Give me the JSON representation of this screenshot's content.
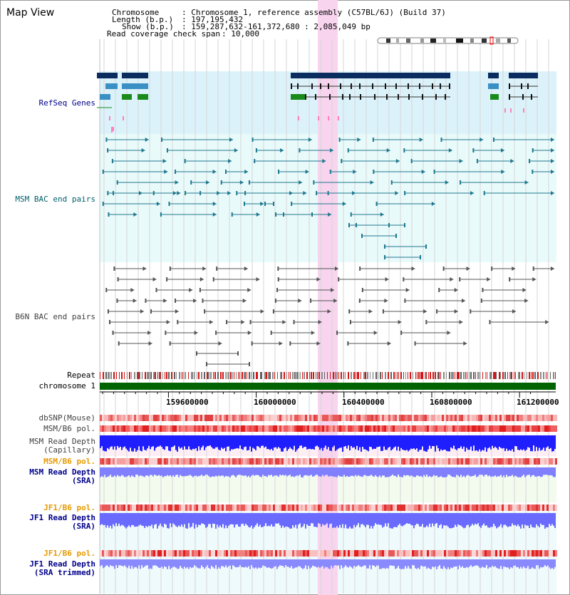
{
  "view_title": "Map View",
  "info": {
    "chromosome_label": "Chromosome",
    "chromosome_value": ": Chromosome 1, reference assembly (C57BL/6J) (Build 37)",
    "length_label": "Length (b.p.)",
    "length_value": ": 197,195,432",
    "show_label": "Show (b.p.)",
    "show_value": ": 159,287,632-161,372,680 : 2,085,049 bp",
    "coverage_label": "Read coverage check span",
    "coverage_value": ": 10,000"
  },
  "tracks": {
    "refseq": "RefSeq Genes",
    "msm_bac": "MSM BAC end pairs",
    "b6n_bac": "B6N BAC end pairs",
    "repeat": "Repeat",
    "chromosome": "chromosome 1",
    "dbsnp": "dbSNP(Mouse)",
    "msm_b6_pol_1": "MSM/B6 pol.",
    "msm_read_depth_cap_1": "MSM Read Depth",
    "msm_read_depth_cap_2": "(Capillary)",
    "msm_b6_pol_2": "MSM/B6 pol.",
    "msm_read_depth_sra_1": "MSM Read Depth",
    "msm_read_depth_sra_2": "(SRA)",
    "jf1_b6_pol_1": "JF1/B6 pol.",
    "jf1_read_depth_sra_1": "JF1 Read Depth",
    "jf1_read_depth_sra_2": "(SRA)",
    "jf1_b6_pol_2": "JF1/B6 pol.",
    "jf1_read_depth_trim_1": "JF1 Read Depth",
    "jf1_read_depth_trim_2": "(SRA trimmed)"
  },
  "axis_ticks": [
    "159600000",
    "160000000",
    "160400000",
    "160800000",
    "161200000"
  ],
  "colors": {
    "refseq_bg": "#dcf2fa",
    "msm_bg": "#e9fafa",
    "highlight": "#f8d4ee",
    "chromosome_bar": "#006400",
    "depth_capillary": "#1e1eff",
    "depth_sra": "#8080ff",
    "label_blue": "#00008b",
    "label_orange": "#e69a00",
    "label_teal": "#005f6b"
  }
}
